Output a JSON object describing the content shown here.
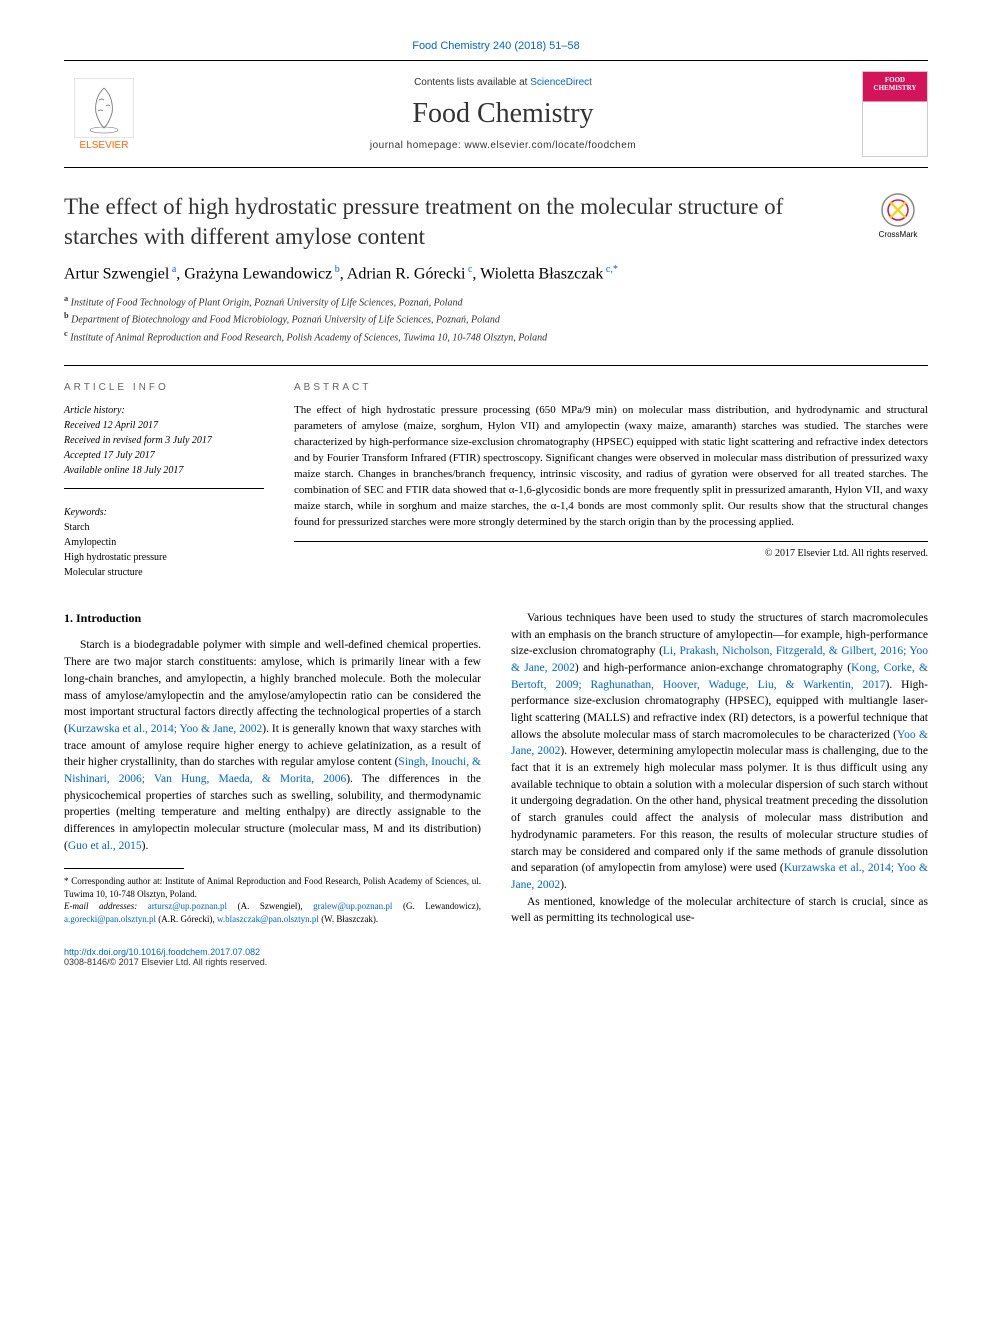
{
  "journal_ref": "Food Chemistry 240 (2018) 51–58",
  "header": {
    "contents_prefix": "Contents lists available at ",
    "contents_link": "ScienceDirect",
    "journal_title": "Food Chemistry",
    "homepage_prefix": "journal homepage: ",
    "homepage_url": "www.elsevier.com/locate/foodchem",
    "publisher": "ELSEVIER",
    "cover_label": "FOOD CHEMISTRY"
  },
  "crossmark_label": "CrossMark",
  "title": "The effect of high hydrostatic pressure treatment on the molecular structure of starches with different amylose content",
  "authors_html": "Artur Szwengiel<sup> a</sup>, Grażyna Lewandowicz<sup> b</sup>, Adrian R. Górecki<sup> c</sup>, Wioletta Błaszczak<sup> c,*</sup>",
  "affiliations": [
    {
      "sup": "a",
      "text": "Institute of Food Technology of Plant Origin, Poznań University of Life Sciences, Poznań, Poland"
    },
    {
      "sup": "b",
      "text": "Department of Biotechnology and Food Microbiology, Poznań University of Life Sciences, Poznań, Poland"
    },
    {
      "sup": "c",
      "text": "Institute of Animal Reproduction and Food Research, Polish Academy of Sciences, Tuwima 10, 10-748 Olsztyn, Poland"
    }
  ],
  "info": {
    "section_label": "ARTICLE INFO",
    "history_label": "Article history:",
    "history": [
      "Received 12 April 2017",
      "Received in revised form 3 July 2017",
      "Accepted 17 July 2017",
      "Available online 18 July 2017"
    ],
    "keywords_label": "Keywords:",
    "keywords": [
      "Starch",
      "Amylopectin",
      "High hydrostatic pressure",
      "Molecular structure"
    ]
  },
  "abstract": {
    "section_label": "ABSTRACT",
    "text": "The effect of high hydrostatic pressure processing (650 MPa/9 min) on molecular mass distribution, and hydrodynamic and structural parameters of amylose (maize, sorghum, Hylon VII) and amylopectin (waxy maize, amaranth) starches was studied. The starches were characterized by high-performance size-exclusion chromatography (HPSEC) equipped with static light scattering and refractive index detectors and by Fourier Transform Infrared (FTIR) spectroscopy. Significant changes were observed in molecular mass distribution of pressurized waxy maize starch. Changes in branches/branch frequency, intrinsic viscosity, and radius of gyration were observed for all treated starches. The combination of SEC and FTIR data showed that α-1,6-glycosidic bonds are more frequently split in pressurized amaranth, Hylon VII, and waxy maize starch, while in sorghum and maize starches, the α-1,4 bonds are most commonly split. Our results show that the structural changes found for pressurized starches were more strongly determined by the starch origin than by the processing applied.",
    "copyright": "© 2017 Elsevier Ltd. All rights reserved."
  },
  "body": {
    "intro_heading": "1. Introduction",
    "p1_pre": "Starch is a biodegradable polymer with simple and well-defined chemical properties. There are two major starch constituents: amylose, which is primarily linear with a few long-chain branches, and amylopectin, a highly branched molecule. Both the molecular mass of amylose/amylopectin and the amylose/amylopectin ratio can be considered the most important structural factors directly affecting the technological properties of a starch (",
    "p1_cite1": "Kurzawska et al., 2014; Yoo & Jane, 2002",
    "p1_mid1": "). It is generally known that waxy starches with trace amount of amylose require higher energy to achieve gelatinization, as a result of their higher crystallinity, than do starches with regular amylose content (",
    "p1_cite2": "Singh, Inouchi, & Nishinari, 2006; Van Hung, Maeda, & Morita, 2006",
    "p1_mid2": "). The differences in the physicochemical properties of starches such as swelling, solubility, and thermodynamic properties (melting temperature and melting enthalpy) are directly assignable to the differences in amylopectin molecular structure (molecular mass, M and its distribution) (",
    "p1_cite3": "Guo et al., 2015",
    "p1_end": ").",
    "p2_pre": "Various techniques have been used to study the structures of starch macromolecules with an emphasis on the branch structure of amylopectin—for example, high-performance size-exclusion chromatography (",
    "p2_cite1": "Li, Prakash, Nicholson, Fitzgerald, & Gilbert, 2016; Yoo & Jane, 2002",
    "p2_mid1": ") and high-performance anion-exchange chromatography (",
    "p2_cite2": "Kong, Corke, & Bertoft, 2009; Raghunathan, Hoover, Waduge, Liu, & Warkentin, 2017",
    "p2_mid2": "). High-performance size-exclusion chromatography (HPSEC), equipped with multiangle laser-light scattering (MALLS) and refractive index (RI) detectors, is a powerful technique that allows the absolute molecular mass of starch macromolecules to be characterized (",
    "p2_cite3": "Yoo & Jane, 2002",
    "p2_mid3": "). However, determining amylopectin molecular mass is challenging, due to the fact that it is an extremely high molecular mass polymer. It is thus difficult using any available technique to obtain a solution with a molecular dispersion of such starch without it undergoing degradation. On the other hand, physical treatment preceding the dissolution of starch granules could affect the analysis of molecular mass distribution and hydrodynamic parameters. For this reason, the results of molecular structure studies of starch may be considered and compared only if the same methods of granule dissolution and separation (of amylopectin from amylose) were used (",
    "p2_cite4": "Kurzawska et al., 2014; Yoo & Jane, 2002",
    "p2_end": ").",
    "p3": "As mentioned, knowledge of the molecular architecture of starch is crucial, since as well as permitting its technological use-"
  },
  "footnotes": {
    "corr": "* Corresponding author at: Institute of Animal Reproduction and Food Research, Polish Academy of Sciences, ul. Tuwima 10, 10-748 Olsztyn, Poland.",
    "email_label": "E-mail addresses: ",
    "emails_html": "<a>artursz@up.poznan.pl</a> (A. Szwengiel), <a>gralew@up.poznan.pl</a> (G. Lewandowicz), <a>a.gorecki@pan.olsztyn.pl</a> (A.R. Górecki), <a>w.blaszczak@pan.olsztyn.pl</a> (W. Błaszczak)."
  },
  "footer": {
    "doi": "http://dx.doi.org/10.1016/j.foodchem.2017.07.082",
    "issn_line": "0308-8146/© 2017 Elsevier Ltd. All rights reserved."
  },
  "colors": {
    "link": "#0066cc",
    "accent": "#ff6600",
    "cover": "#d4145a"
  }
}
